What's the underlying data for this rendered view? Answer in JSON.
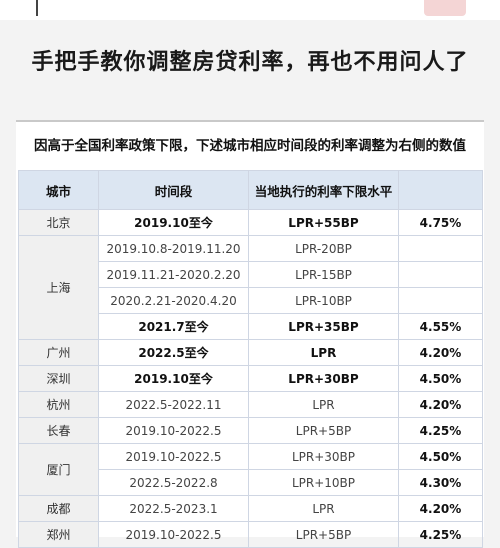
{
  "headline": "手把手教你调整房贷利率，再也不用问人了",
  "notice": "因高于全国利率政策下限，下述城市相应时间段的利率调整为右侧的数值",
  "table": {
    "headers": [
      "城市",
      "时间段",
      "当地执行的利率下限水平",
      ""
    ],
    "rows": [
      {
        "city": "北京",
        "period": "2019.10至今",
        "rate": "LPR+55BP",
        "value": "4.75%",
        "emph": true
      },
      {
        "city": "上海",
        "period": "2019.10.8-2019.11.20",
        "rate": "LPR-20BP",
        "value": "",
        "emph": false
      },
      {
        "city": "",
        "period": "2019.11.21-2020.2.20",
        "rate": "LPR-15BP",
        "value": "",
        "emph": false
      },
      {
        "city": "",
        "period": "2020.2.21-2020.4.20",
        "rate": "LPR-10BP",
        "value": "",
        "emph": false
      },
      {
        "city": "",
        "period": "2021.7至今",
        "rate": "LPR+35BP",
        "value": "4.55%",
        "emph": true
      },
      {
        "city": "广州",
        "period": "2022.5至今",
        "rate": "LPR",
        "value": "4.20%",
        "emph": true
      },
      {
        "city": "深圳",
        "period": "2019.10至今",
        "rate": "LPR+30BP",
        "value": "4.50%",
        "emph": true
      },
      {
        "city": "杭州",
        "period": "2022.5-2022.11",
        "rate": "LPR",
        "value": "4.20%",
        "emph": false
      },
      {
        "city": "长春",
        "period": "2019.10-2022.5",
        "rate": "LPR+5BP",
        "value": "4.25%",
        "emph": false
      },
      {
        "city": "厦门",
        "period": "2019.10-2022.5",
        "rate": "LPR+30BP",
        "value": "4.50%",
        "emph": false
      },
      {
        "city": "",
        "period": "2022.5-2022.8",
        "rate": "LPR+10BP",
        "value": "4.30%",
        "emph": false
      },
      {
        "city": "成都",
        "period": "2022.5-2023.1",
        "rate": "LPR",
        "value": "4.20%",
        "emph": false
      },
      {
        "city": "郑州",
        "period": "2019.10-2022.5",
        "rate": "LPR+5BP",
        "value": "4.25%",
        "emph": false
      }
    ]
  }
}
